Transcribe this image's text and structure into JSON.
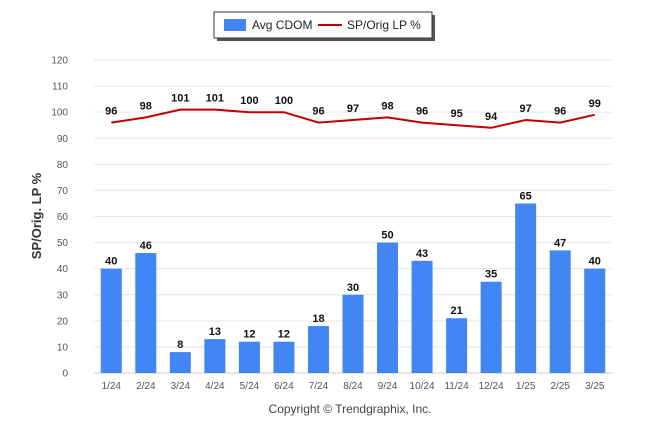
{
  "chart_data": {
    "type": "bar",
    "categories": [
      "1/24",
      "2/24",
      "3/24",
      "4/24",
      "5/24",
      "6/24",
      "7/24",
      "8/24",
      "9/24",
      "10/24",
      "11/24",
      "12/24",
      "1/25",
      "2/25",
      "3/25"
    ],
    "series": [
      {
        "name": "Avg CDOM",
        "type": "bar",
        "color": "#4285f4",
        "values": [
          40,
          46,
          8,
          13,
          12,
          12,
          18,
          30,
          50,
          43,
          21,
          35,
          65,
          47,
          40
        ]
      },
      {
        "name": "SP/Orig LP %",
        "type": "line",
        "color": "#c00000",
        "values": [
          96,
          98,
          101,
          101,
          100,
          100,
          96,
          97,
          98,
          96,
          95,
          94,
          97,
          96,
          99
        ]
      }
    ],
    "ylabel": "SP/Orig. LP %",
    "xlabel": "",
    "ylim": [
      0,
      120
    ],
    "yticks": [
      0,
      10,
      20,
      30,
      40,
      50,
      60,
      70,
      80,
      90,
      100,
      110,
      120
    ],
    "grid": true,
    "legend_position": "top-center"
  },
  "footer": "Copyright © Trendgraphix, Inc."
}
